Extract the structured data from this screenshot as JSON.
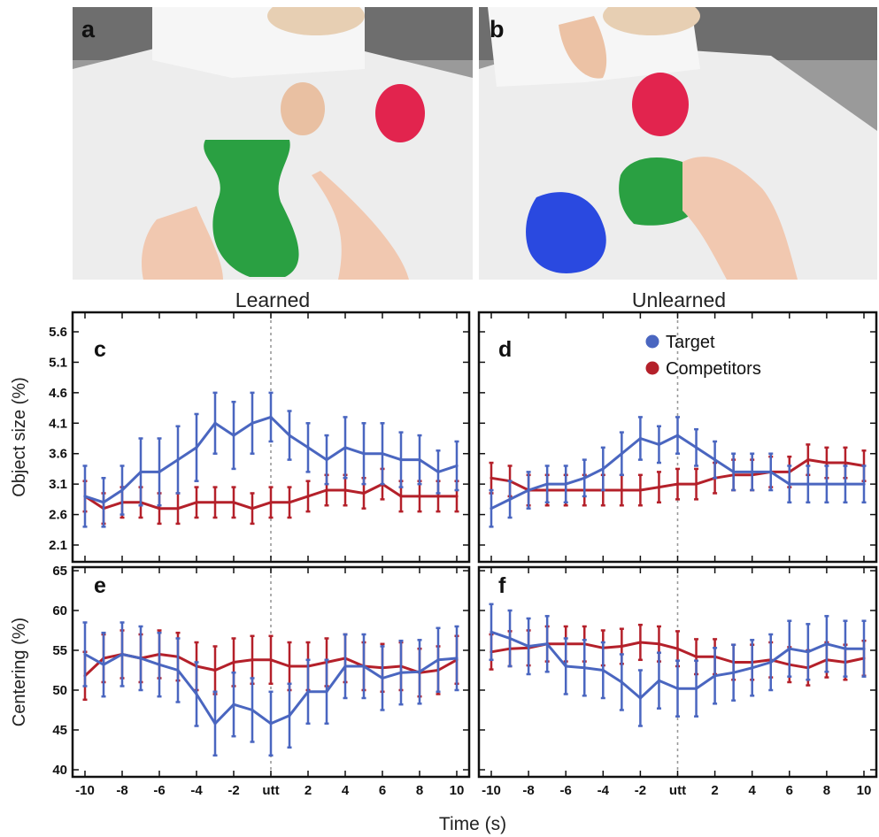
{
  "photos": [
    {
      "letter": "a"
    },
    {
      "letter": "b"
    }
  ],
  "column_titles": {
    "left": "Learned",
    "right": "Unlearned"
  },
  "legend": [
    {
      "label": "Target",
      "color": "#4a66c0"
    },
    {
      "label": "Competitors",
      "color": "#b4202a"
    }
  ],
  "colors": {
    "target": "#4a66c0",
    "competitors": "#b4202a",
    "marker_line": "#999999"
  },
  "x_axis": {
    "label": "Time (s)",
    "ticks": [
      -10,
      -8,
      -6,
      -4,
      -2,
      0,
      2,
      4,
      6,
      8,
      10
    ],
    "tick_labels": [
      "-10",
      "-8",
      "-6",
      "-4",
      "-2",
      "utt",
      "2",
      "4",
      "6",
      "8",
      "10"
    ],
    "range": [
      -10,
      10
    ]
  },
  "chart_data": [
    {
      "type": "line",
      "panel": "c",
      "ylabel": "Object size (%)",
      "ylim": [
        2.1,
        5.6
      ],
      "yticks": [
        "2.1",
        "2.6",
        "3.1",
        "3.6",
        "4.1",
        "4.6",
        "5.1",
        "5.6"
      ],
      "x": [
        -10,
        -9,
        -8,
        -7,
        -6,
        -5,
        -4,
        -3,
        -2,
        -1,
        0,
        1,
        2,
        3,
        4,
        5,
        6,
        7,
        8,
        9,
        10
      ],
      "series": [
        {
          "name": "Target",
          "values": [
            2.9,
            2.8,
            3.0,
            3.3,
            3.3,
            3.5,
            3.7,
            4.1,
            3.9,
            4.1,
            4.2,
            3.9,
            3.7,
            3.5,
            3.7,
            3.6,
            3.6,
            3.5,
            3.5,
            3.3,
            3.4
          ],
          "err": [
            0.5,
            0.4,
            0.4,
            0.55,
            0.55,
            0.55,
            0.55,
            0.5,
            0.55,
            0.5,
            0.4,
            0.4,
            0.4,
            0.4,
            0.5,
            0.5,
            0.5,
            0.45,
            0.4,
            0.35,
            0.4
          ]
        },
        {
          "name": "Competitors",
          "values": [
            2.9,
            2.7,
            2.8,
            2.8,
            2.7,
            2.7,
            2.8,
            2.8,
            2.8,
            2.7,
            2.8,
            2.8,
            2.9,
            3.0,
            3.0,
            2.95,
            3.1,
            2.9,
            2.9,
            2.9,
            2.9
          ],
          "err": [
            0.25,
            0.25,
            0.25,
            0.25,
            0.25,
            0.25,
            0.25,
            0.25,
            0.25,
            0.25,
            0.25,
            0.25,
            0.25,
            0.25,
            0.25,
            0.25,
            0.25,
            0.25,
            0.25,
            0.25,
            0.25
          ]
        }
      ]
    },
    {
      "type": "line",
      "panel": "d",
      "ylabel": "",
      "ylim": [
        2.1,
        5.6
      ],
      "yticks": [
        "2.1",
        "2.6",
        "3.1",
        "3.6",
        "4.1",
        "4.6",
        "5.1",
        "5.6"
      ],
      "x": [
        -10,
        -9,
        -8,
        -7,
        -6,
        -5,
        -4,
        -3,
        -2,
        -1,
        0,
        1,
        2,
        3,
        4,
        5,
        6,
        7,
        8,
        9,
        10
      ],
      "series": [
        {
          "name": "Target",
          "values": [
            2.7,
            2.85,
            3.0,
            3.1,
            3.1,
            3.2,
            3.35,
            3.6,
            3.85,
            3.75,
            3.9,
            3.7,
            3.5,
            3.3,
            3.3,
            3.3,
            3.1,
            3.1,
            3.1,
            3.1,
            3.1
          ],
          "err": [
            0.3,
            0.3,
            0.3,
            0.3,
            0.3,
            0.3,
            0.35,
            0.35,
            0.35,
            0.3,
            0.3,
            0.3,
            0.3,
            0.3,
            0.3,
            0.3,
            0.3,
            0.3,
            0.3,
            0.3,
            0.3
          ]
        },
        {
          "name": "Competitors",
          "values": [
            3.2,
            3.15,
            3.0,
            3.0,
            3.0,
            3.0,
            3.0,
            3.0,
            3.0,
            3.05,
            3.1,
            3.1,
            3.2,
            3.25,
            3.25,
            3.3,
            3.3,
            3.5,
            3.45,
            3.45,
            3.4
          ],
          "err": [
            0.25,
            0.25,
            0.25,
            0.25,
            0.25,
            0.25,
            0.25,
            0.25,
            0.25,
            0.25,
            0.25,
            0.25,
            0.25,
            0.25,
            0.25,
            0.25,
            0.25,
            0.25,
            0.25,
            0.25,
            0.25
          ]
        }
      ]
    },
    {
      "type": "line",
      "panel": "e",
      "ylabel": "Centering (%)",
      "ylim": [
        40,
        65
      ],
      "yticks": [
        "40",
        "45",
        "50",
        "55",
        "60",
        "65"
      ],
      "x": [
        -10,
        -9,
        -8,
        -7,
        -6,
        -5,
        -4,
        -3,
        -2,
        -1,
        0,
        1,
        2,
        3,
        4,
        5,
        6,
        7,
        8,
        9,
        10
      ],
      "series": [
        {
          "name": "Target",
          "values": [
            54.5,
            53.2,
            54.5,
            54,
            53.2,
            52.5,
            49.5,
            45.8,
            48.2,
            47.5,
            45.8,
            46.8,
            49.8,
            49.8,
            53,
            53,
            51.5,
            52.2,
            52.3,
            53.8,
            54
          ],
          "err": [
            4,
            4,
            4,
            4,
            4,
            4,
            4,
            4,
            4,
            4,
            4,
            4,
            4,
            4,
            4,
            4,
            4,
            4,
            4,
            4,
            4
          ]
        },
        {
          "name": "Competitors",
          "values": [
            51.8,
            54,
            54.5,
            54,
            54.5,
            54.2,
            53,
            52.5,
            53.5,
            53.8,
            53.8,
            53,
            53,
            53.5,
            54,
            53,
            52.8,
            53,
            52.2,
            52.5,
            53.8
          ],
          "err": [
            3,
            3,
            3,
            3,
            3,
            3,
            3,
            3,
            3,
            3,
            3,
            3,
            3,
            3,
            3,
            3,
            3,
            3,
            3,
            3,
            3
          ]
        }
      ]
    },
    {
      "type": "line",
      "panel": "f",
      "ylabel": "",
      "ylim": [
        40,
        65
      ],
      "yticks": [
        "40",
        "45",
        "50",
        "55",
        "60",
        "65"
      ],
      "x": [
        -10,
        -9,
        -8,
        -7,
        -6,
        -5,
        -4,
        -3,
        -2,
        -1,
        0,
        1,
        2,
        3,
        4,
        5,
        6,
        7,
        8,
        9,
        10
      ],
      "series": [
        {
          "name": "Target",
          "values": [
            57.3,
            56.5,
            55.5,
            55.8,
            53,
            52.8,
            52.5,
            51,
            49,
            51.2,
            50.2,
            50.2,
            51.8,
            52.2,
            52.8,
            53.5,
            55.2,
            54.8,
            55.8,
            55.2,
            55.2
          ],
          "err": [
            3.5,
            3.5,
            3.5,
            3.5,
            3.5,
            3.5,
            3.5,
            3.5,
            3.5,
            3.5,
            3.5,
            3.5,
            3.5,
            3.5,
            3.5,
            3.5,
            3.5,
            3.5,
            3.5,
            3.5,
            3.5
          ]
        },
        {
          "name": "Competitors",
          "values": [
            54.8,
            55.2,
            55.3,
            55.8,
            55.8,
            55.8,
            55.3,
            55.5,
            56,
            55.8,
            55.2,
            54.2,
            54.2,
            53.5,
            53.5,
            53.8,
            53.2,
            52.8,
            53.8,
            53.5,
            54
          ],
          "err": [
            2.2,
            2.2,
            2.2,
            2.2,
            2.2,
            2.2,
            2.2,
            2.2,
            2.2,
            2.2,
            2.2,
            2.2,
            2.2,
            2.2,
            2.2,
            2.2,
            2.2,
            2.2,
            2.2,
            2.2,
            2.2
          ]
        }
      ]
    }
  ]
}
